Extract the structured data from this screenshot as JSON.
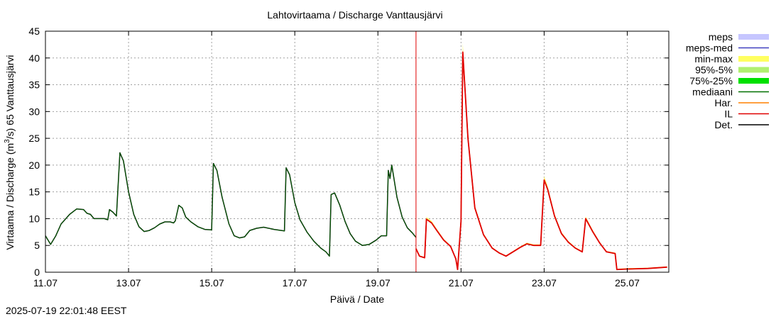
{
  "chart_data": {
    "type": "line",
    "title": "Lahtovirtaama / Discharge  Vanttausjärvi",
    "ylabel": "Virtaama / Discharge (m³/s)  65 Vanttausjärvi",
    "ylabel_parts": [
      "Virtaama / Discharge (m",
      "3",
      "/s)  65 Vanttausjärvi"
    ],
    "xlabel": "Päivä / Date",
    "ylim": [
      0,
      45
    ],
    "yticks": [
      0,
      5,
      10,
      15,
      20,
      25,
      30,
      35,
      40,
      45
    ],
    "xlim": [
      "2025-07-11 00:00",
      "2025-07-26 00:00"
    ],
    "xticks": [
      "11.07",
      "13.07",
      "15.07",
      "17.07",
      "19.07",
      "21.07",
      "23.07",
      "25.07"
    ],
    "grid": true,
    "forecast_line": "2025-07-19 22:00",
    "legend_position": "outside-right",
    "legend": [
      {
        "name": "meps",
        "color": "#c6c6ff",
        "style": "band"
      },
      {
        "name": "meps-med",
        "color": "#4040c0",
        "style": "line"
      },
      {
        "name": "min-max",
        "color": "#ffff60",
        "style": "band"
      },
      {
        "name": "95%-5%",
        "color": "#b0f070",
        "style": "band"
      },
      {
        "name": "75%-25%",
        "color": "#00e000",
        "style": "band"
      },
      {
        "name": "mediaani",
        "color": "#007000",
        "style": "line"
      },
      {
        "name": "Har.",
        "color": "#ff8000",
        "style": "line"
      },
      {
        "name": "IL",
        "color": "#e00000",
        "style": "line"
      },
      {
        "name": "Det.",
        "color": "#000000",
        "style": "line"
      }
    ],
    "series": [
      {
        "name": "Det.",
        "color": "#000000",
        "points": [
          [
            "2025-07-11 00:00",
            6.8
          ],
          [
            "2025-07-11 03:00",
            5.2
          ],
          [
            "2025-07-11 06:00",
            6.8
          ],
          [
            "2025-07-11 09:00",
            9.0
          ],
          [
            "2025-07-11 14:00",
            10.8
          ],
          [
            "2025-07-11 18:00",
            11.8
          ],
          [
            "2025-07-11 22:00",
            11.7
          ],
          [
            "2025-07-12 00:00",
            11.0
          ],
          [
            "2025-07-12 02:00",
            10.8
          ],
          [
            "2025-07-12 04:00",
            10.0
          ],
          [
            "2025-07-12 10:00",
            10.0
          ],
          [
            "2025-07-12 12:00",
            9.8
          ],
          [
            "2025-07-12 13:00",
            11.7
          ],
          [
            "2025-07-12 15:00",
            11.2
          ],
          [
            "2025-07-12 17:00",
            10.5
          ],
          [
            "2025-07-12 19:00",
            22.3
          ],
          [
            "2025-07-12 21:00",
            20.8
          ],
          [
            "2025-07-13 00:00",
            15.0
          ],
          [
            "2025-07-13 03:00",
            10.8
          ],
          [
            "2025-07-13 06:00",
            8.5
          ],
          [
            "2025-07-13 09:00",
            7.6
          ],
          [
            "2025-07-13 12:00",
            7.8
          ],
          [
            "2025-07-13 15:00",
            8.3
          ],
          [
            "2025-07-13 18:00",
            9.0
          ],
          [
            "2025-07-13 21:00",
            9.4
          ],
          [
            "2025-07-14 00:00",
            9.4
          ],
          [
            "2025-07-14 02:00",
            9.2
          ],
          [
            "2025-07-14 03:00",
            9.6
          ],
          [
            "2025-07-14 05:00",
            12.5
          ],
          [
            "2025-07-14 07:00",
            12.0
          ],
          [
            "2025-07-14 09:00",
            10.3
          ],
          [
            "2025-07-14 12:00",
            9.4
          ],
          [
            "2025-07-14 16:00",
            8.5
          ],
          [
            "2025-07-14 20:00",
            8.0
          ],
          [
            "2025-07-15 00:00",
            7.9
          ],
          [
            "2025-07-15 01:00",
            20.3
          ],
          [
            "2025-07-15 03:00",
            19.0
          ],
          [
            "2025-07-15 06:00",
            14.0
          ],
          [
            "2025-07-15 10:00",
            9.0
          ],
          [
            "2025-07-15 13:00",
            6.8
          ],
          [
            "2025-07-15 16:00",
            6.4
          ],
          [
            "2025-07-15 19:00",
            6.6
          ],
          [
            "2025-07-15 22:00",
            7.8
          ],
          [
            "2025-07-16 02:00",
            8.2
          ],
          [
            "2025-07-16 06:00",
            8.4
          ],
          [
            "2025-07-16 12:00",
            8.0
          ],
          [
            "2025-07-16 18:00",
            7.7
          ],
          [
            "2025-07-16 19:00",
            19.5
          ],
          [
            "2025-07-16 21:00",
            18.2
          ],
          [
            "2025-07-17 00:00",
            13.0
          ],
          [
            "2025-07-17 03:00",
            9.8
          ],
          [
            "2025-07-17 07:00",
            7.5
          ],
          [
            "2025-07-17 11:00",
            5.8
          ],
          [
            "2025-07-17 15:00",
            4.5
          ],
          [
            "2025-07-17 18:00",
            3.8
          ],
          [
            "2025-07-17 20:00",
            3.0
          ],
          [
            "2025-07-17 21:00",
            14.5
          ],
          [
            "2025-07-17 23:00",
            14.8
          ],
          [
            "2025-07-18 02:00",
            12.5
          ],
          [
            "2025-07-18 05:00",
            9.5
          ],
          [
            "2025-07-18 08:00",
            7.2
          ],
          [
            "2025-07-18 11:00",
            5.8
          ],
          [
            "2025-07-18 15:00",
            5.0
          ],
          [
            "2025-07-18 19:00",
            5.2
          ],
          [
            "2025-07-18 23:00",
            6.0
          ],
          [
            "2025-07-19 02:00",
            6.8
          ],
          [
            "2025-07-19 05:00",
            6.8
          ],
          [
            "2025-07-19 06:00",
            19.0
          ],
          [
            "2025-07-19 07:00",
            17.5
          ],
          [
            "2025-07-19 08:00",
            20.0
          ],
          [
            "2025-07-19 11:00",
            14.0
          ],
          [
            "2025-07-19 14:00",
            10.3
          ],
          [
            "2025-07-19 17:00",
            8.3
          ],
          [
            "2025-07-19 20:00",
            7.3
          ],
          [
            "2025-07-19 22:00",
            6.5
          ]
        ]
      },
      {
        "name": "IL",
        "color": "#e00000",
        "points": [
          [
            "2025-07-19 22:00",
            4.4
          ],
          [
            "2025-07-20 00:00",
            3.0
          ],
          [
            "2025-07-20 03:00",
            2.7
          ],
          [
            "2025-07-20 04:00",
            9.9
          ],
          [
            "2025-07-20 07:00",
            9.2
          ],
          [
            "2025-07-20 10:00",
            7.8
          ],
          [
            "2025-07-20 14:00",
            6.0
          ],
          [
            "2025-07-20 18:00",
            4.8
          ],
          [
            "2025-07-20 21:00",
            2.5
          ],
          [
            "2025-07-20 22:00",
            0.5
          ],
          [
            "2025-07-21 00:00",
            9.5
          ],
          [
            "2025-07-21 01:00",
            41.1
          ],
          [
            "2025-07-21 04:00",
            25.0
          ],
          [
            "2025-07-21 08:00",
            12.0
          ],
          [
            "2025-07-21 13:00",
            7.0
          ],
          [
            "2025-07-21 18:00",
            4.5
          ],
          [
            "2025-07-21 22:00",
            3.6
          ],
          [
            "2025-07-22 02:00",
            3.0
          ],
          [
            "2025-07-22 06:00",
            3.8
          ],
          [
            "2025-07-22 10:00",
            4.6
          ],
          [
            "2025-07-22 14:00",
            5.3
          ],
          [
            "2025-07-22 18:00",
            5.0
          ],
          [
            "2025-07-22 22:00",
            5.0
          ],
          [
            "2025-07-23 00:00",
            17.2
          ],
          [
            "2025-07-23 02:00",
            15.5
          ],
          [
            "2025-07-23 06:00",
            10.5
          ],
          [
            "2025-07-23 10:00",
            7.2
          ],
          [
            "2025-07-23 14:00",
            5.6
          ],
          [
            "2025-07-23 18:00",
            4.5
          ],
          [
            "2025-07-23 22:00",
            3.8
          ],
          [
            "2025-07-24 00:00",
            10.0
          ],
          [
            "2025-07-24 04:00",
            7.6
          ],
          [
            "2025-07-24 08:00",
            5.5
          ],
          [
            "2025-07-24 12:00",
            3.8
          ],
          [
            "2025-07-24 17:00",
            3.5
          ],
          [
            "2025-07-24 18:00",
            0.5
          ],
          [
            "2025-07-25 00:00",
            0.6
          ],
          [
            "2025-07-25 12:00",
            0.7
          ],
          [
            "2025-07-25 23:00",
            0.95
          ]
        ]
      }
    ]
  },
  "footer": {
    "timestamp": "2025-07-19 22:01:48 EEST"
  }
}
